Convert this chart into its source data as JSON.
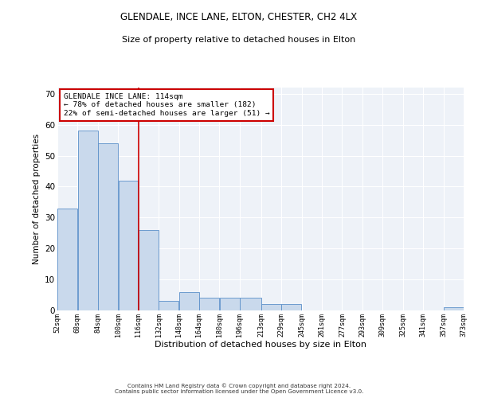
{
  "title": "GLENDALE, INCE LANE, ELTON, CHESTER, CH2 4LX",
  "subtitle": "Size of property relative to detached houses in Elton",
  "xlabel": "Distribution of detached houses by size in Elton",
  "ylabel": "Number of detached properties",
  "bar_color": "#c9d9ec",
  "bar_edge_color": "#5b8fc9",
  "background_color": "#ffffff",
  "plot_bg_color": "#eef2f8",
  "grid_color": "#ffffff",
  "annotation_text": "GLENDALE INCE LANE: 114sqm\n← 78% of detached houses are smaller (182)\n22% of semi-detached houses are larger (51) →",
  "vline_x": 116,
  "vline_color": "#cc0000",
  "footnote": "Contains HM Land Registry data © Crown copyright and database right 2024.\nContains public sector information licensed under the Open Government Licence v3.0.",
  "bins": [
    52,
    68,
    84,
    100,
    116,
    132,
    148,
    164,
    180,
    196,
    213,
    229,
    245,
    261,
    277,
    293,
    309,
    325,
    341,
    357,
    373
  ],
  "bar_heights": [
    33,
    58,
    54,
    42,
    26,
    3,
    6,
    4,
    4,
    4,
    2,
    2,
    0,
    0,
    0,
    0,
    0,
    0,
    0,
    1
  ],
  "ylim": [
    0,
    72
  ],
  "yticks": [
    0,
    10,
    20,
    30,
    40,
    50,
    60,
    70
  ]
}
